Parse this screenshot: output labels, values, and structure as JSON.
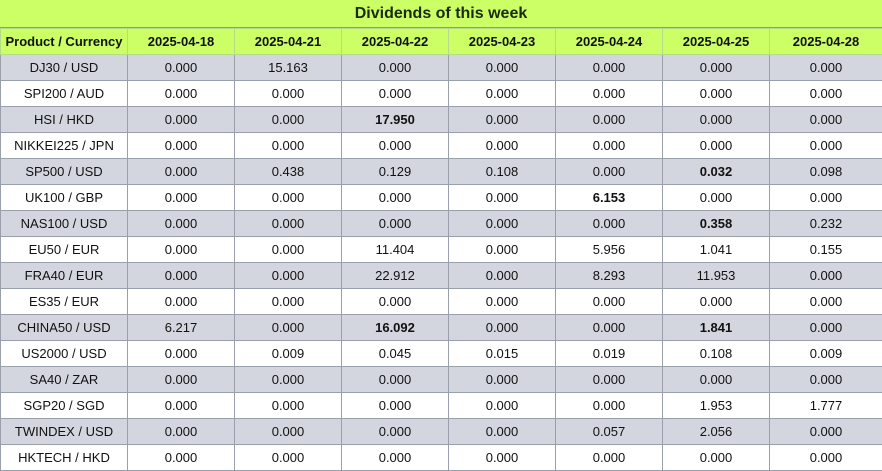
{
  "title": "Dividends of this week",
  "header": {
    "first": "Product / Currency",
    "dates": [
      "2025-04-18",
      "2025-04-21",
      "2025-04-22",
      "2025-04-23",
      "2025-04-24",
      "2025-04-25",
      "2025-04-28"
    ]
  },
  "rows": [
    {
      "product": "DJ30 / USD",
      "values": [
        "0.000",
        "15.163",
        "0.000",
        "0.000",
        "0.000",
        "0.000",
        "0.000"
      ],
      "bold": []
    },
    {
      "product": "SPI200 / AUD",
      "values": [
        "0.000",
        "0.000",
        "0.000",
        "0.000",
        "0.000",
        "0.000",
        "0.000"
      ],
      "bold": []
    },
    {
      "product": "HSI / HKD",
      "values": [
        "0.000",
        "0.000",
        "17.950",
        "0.000",
        "0.000",
        "0.000",
        "0.000"
      ],
      "bold": [
        2
      ]
    },
    {
      "product": "NIKKEI225 / JPN",
      "values": [
        "0.000",
        "0.000",
        "0.000",
        "0.000",
        "0.000",
        "0.000",
        "0.000"
      ],
      "bold": []
    },
    {
      "product": "SP500 / USD",
      "values": [
        "0.000",
        "0.438",
        "0.129",
        "0.108",
        "0.000",
        "0.032",
        "0.098"
      ],
      "bold": [
        5
      ]
    },
    {
      "product": "UK100 / GBP",
      "values": [
        "0.000",
        "0.000",
        "0.000",
        "0.000",
        "6.153",
        "0.000",
        "0.000"
      ],
      "bold": [
        4
      ]
    },
    {
      "product": "NAS100 / USD",
      "values": [
        "0.000",
        "0.000",
        "0.000",
        "0.000",
        "0.000",
        "0.358",
        "0.232"
      ],
      "bold": [
        5
      ]
    },
    {
      "product": "EU50 / EUR",
      "values": [
        "0.000",
        "0.000",
        "11.404",
        "0.000",
        "5.956",
        "1.041",
        "0.155"
      ],
      "bold": []
    },
    {
      "product": "FRA40 / EUR",
      "values": [
        "0.000",
        "0.000",
        "22.912",
        "0.000",
        "8.293",
        "11.953",
        "0.000"
      ],
      "bold": []
    },
    {
      "product": "ES35 / EUR",
      "values": [
        "0.000",
        "0.000",
        "0.000",
        "0.000",
        "0.000",
        "0.000",
        "0.000"
      ],
      "bold": []
    },
    {
      "product": "CHINA50 / USD",
      "values": [
        "6.217",
        "0.000",
        "16.092",
        "0.000",
        "0.000",
        "1.841",
        "0.000"
      ],
      "bold": [
        2,
        5
      ]
    },
    {
      "product": "US2000 / USD",
      "values": [
        "0.000",
        "0.009",
        "0.045",
        "0.015",
        "0.019",
        "0.108",
        "0.009"
      ],
      "bold": []
    },
    {
      "product": "SA40 / ZAR",
      "values": [
        "0.000",
        "0.000",
        "0.000",
        "0.000",
        "0.000",
        "0.000",
        "0.000"
      ],
      "bold": []
    },
    {
      "product": "SGP20 / SGD",
      "values": [
        "0.000",
        "0.000",
        "0.000",
        "0.000",
        "0.000",
        "1.953",
        "1.777"
      ],
      "bold": []
    },
    {
      "product": "TWINDEX / USD",
      "values": [
        "0.000",
        "0.000",
        "0.000",
        "0.000",
        "0.057",
        "2.056",
        "0.000"
      ],
      "bold": []
    },
    {
      "product": "HKTECH / HKD",
      "values": [
        "0.000",
        "0.000",
        "0.000",
        "0.000",
        "0.000",
        "0.000",
        "0.000"
      ],
      "bold": []
    }
  ],
  "colors": {
    "header_bg": "#ccff66",
    "stripe_bg": "#d3d6de",
    "plain_bg": "#ffffff"
  }
}
